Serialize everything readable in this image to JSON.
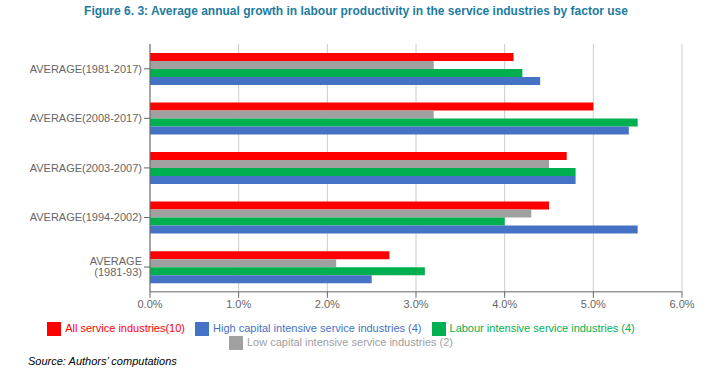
{
  "chart_data": {
    "type": "bar",
    "orientation": "horizontal",
    "title": "Figure 6. 3: Average annual growth in labour productivity in the service industries by factor use",
    "annotations": [
      "Source: Authors’ computations"
    ],
    "categories": [
      "AVERAGE (1981-93)",
      "AVERAGE(1994-2002)",
      "AVERAGE(2003-2007)",
      "AVERAGE(2008-2017)",
      "AVERAGE(1981-2017)"
    ],
    "series": [
      {
        "name": "All service industries(10)",
        "color": "#ff0000",
        "values": [
          0.027,
          0.045,
          0.047,
          0.05,
          0.041
        ]
      },
      {
        "name": "Low capital intensive service industries (2)",
        "color": "#a0a0a0",
        "values": [
          0.021,
          0.043,
          0.045,
          0.032,
          0.032
        ]
      },
      {
        "name": "Labour intensive service industries (4)",
        "color": "#00b050",
        "values": [
          0.031,
          0.04,
          0.048,
          0.055,
          0.042
        ]
      },
      {
        "name": "High capital intensive service industries (4)",
        "color": "#4472c4",
        "values": [
          0.025,
          0.055,
          0.048,
          0.054,
          0.044
        ]
      }
    ],
    "xlim": [
      0,
      0.06
    ],
    "xticks": [
      {
        "value": 0.0,
        "label": "0.0%"
      },
      {
        "value": 0.01,
        "label": "1.0%"
      },
      {
        "value": 0.02,
        "label": "2.0%"
      },
      {
        "value": 0.03,
        "label": "3.0%"
      },
      {
        "value": 0.04,
        "label": "4.0%"
      },
      {
        "value": 0.05,
        "label": "5.0%"
      },
      {
        "value": 0.06,
        "label": "6.0%"
      }
    ],
    "grid": true,
    "legend": "bottom"
  }
}
